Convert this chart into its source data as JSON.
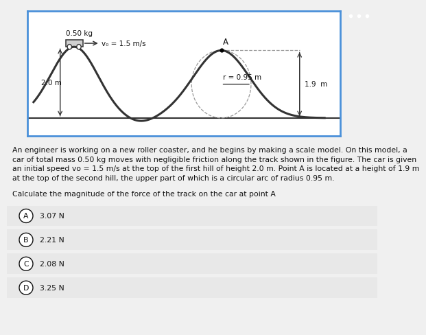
{
  "figure_bg": "#f0f0f0",
  "diagram_bg": "#ffffff",
  "diagram_border_color": "#4a90d9",
  "track_color": "#333333",
  "dashed_color": "#999999",
  "arrow_color": "#333333",
  "text_color": "#111111",
  "car_fill": "#d0d0d0",
  "car_edge": "#333333",
  "three_dots_bg": "#2a2a2a",
  "choice_bg": "#e8e8e8",
  "label_mass": "0.50 kg",
  "label_v0": "v₀ = 1.5 m/s",
  "label_height1": "2.0 m",
  "label_radius": "r = 0.95 m",
  "label_height2": "1.9  m",
  "label_A": "A",
  "para_line1": "An engineer is working on a new roller coaster, and he begins by making a scale model. On this model, a",
  "para_line2": "car of total mass 0.50 kg moves with negligible friction along the track shown in the figure. The car is given",
  "para_line3": "an initial speed vo = 1.5 m/s at the top of the first hill of height 2.0 m. Point A is located at a height of 1.9 m",
  "para_line4": "at the top of the second hill, the upper part of which is a circular arc of radius 0.95 m.",
  "question": "Calculate the magnitude of the force of the track on the car at point A",
  "choice_labels": [
    "A",
    "B",
    "C",
    "D"
  ],
  "choice_values": [
    "3.07 N",
    "2.21 N",
    "2.08 N",
    "3.25 N"
  ],
  "font_size_body": 7.8,
  "font_size_diagram": 7.5
}
